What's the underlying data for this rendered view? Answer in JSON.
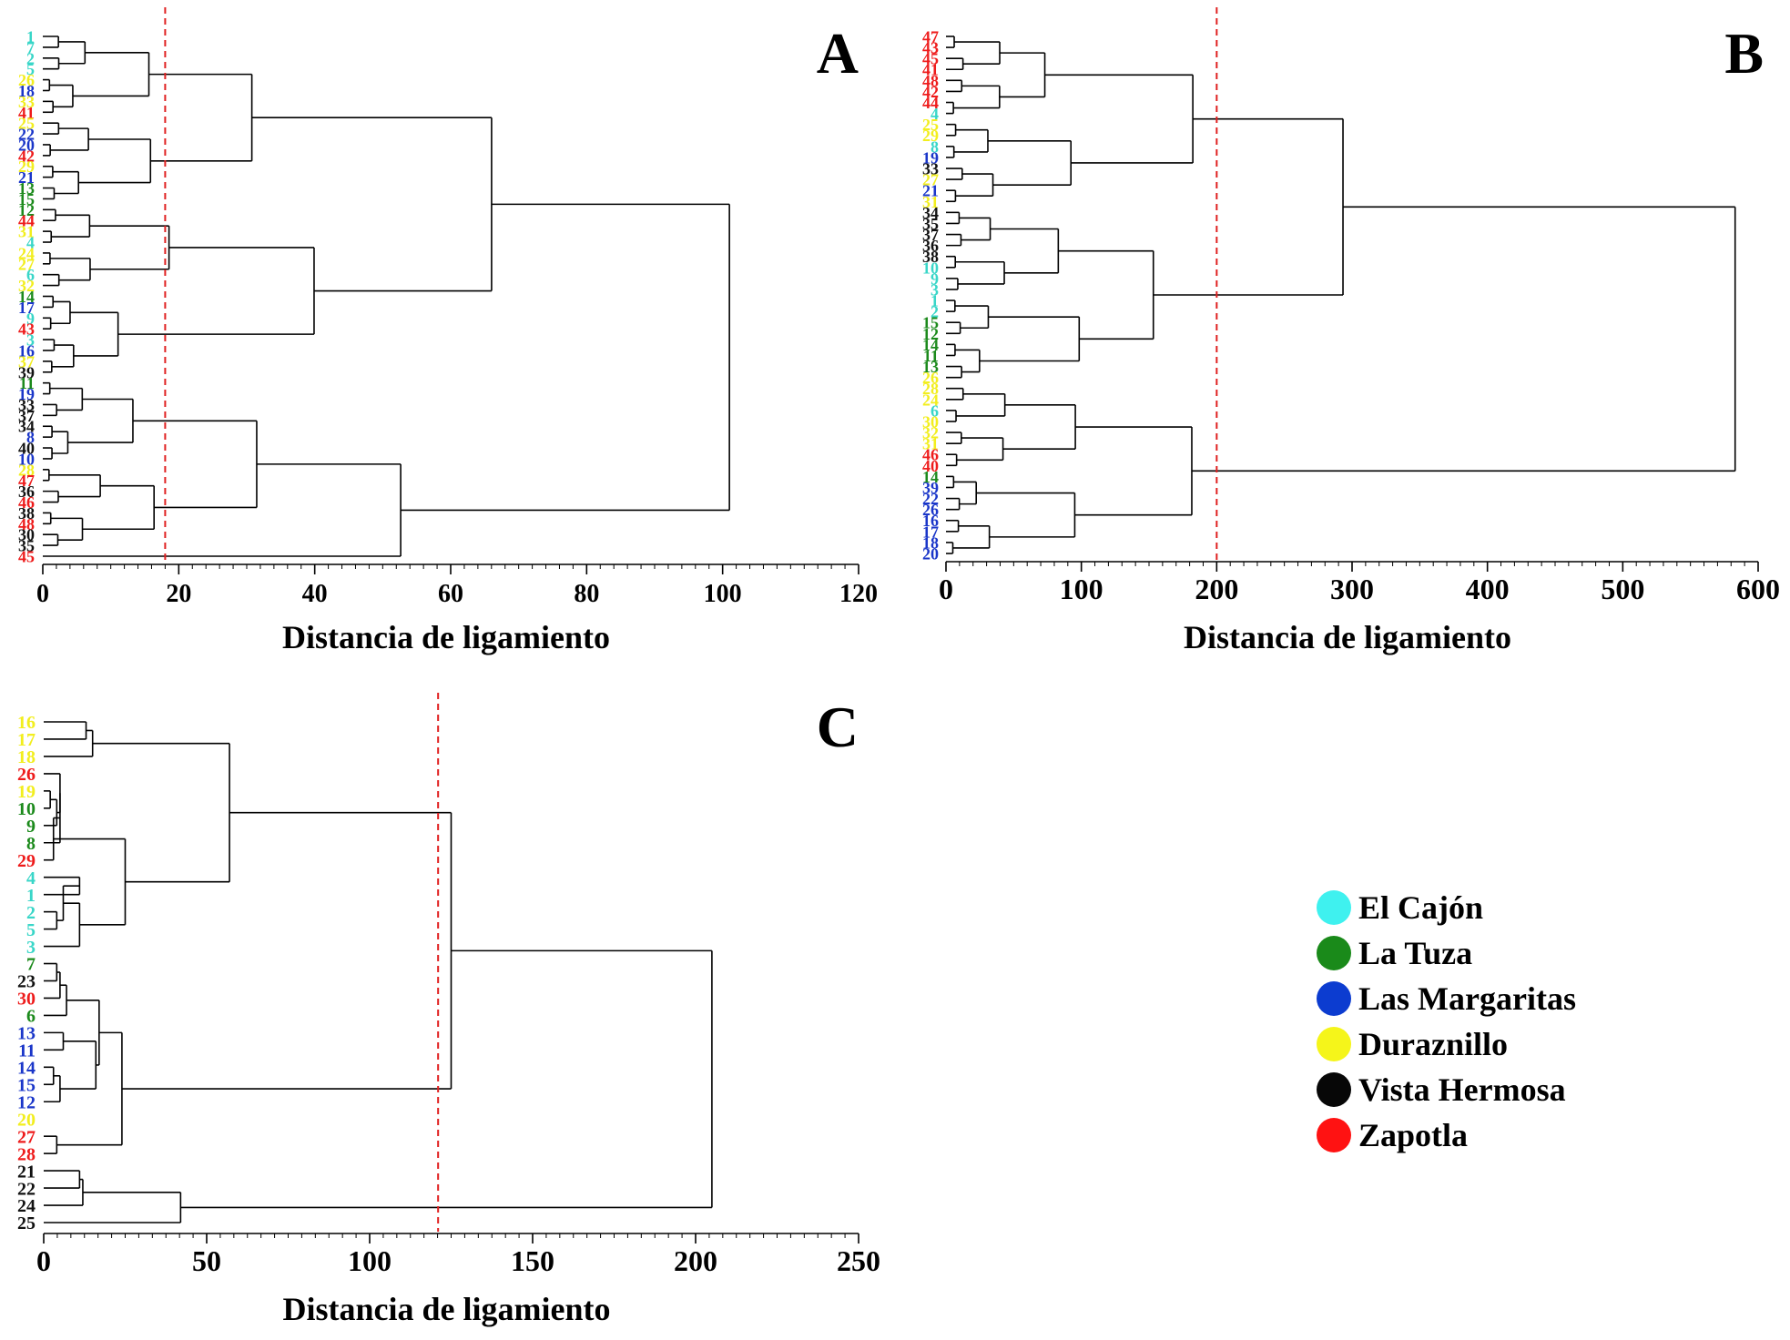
{
  "colors": {
    "el_cajon": "#39d6c8",
    "la_tuza": "#1c8a1c",
    "las_margaritas": "#1a36c9",
    "duraznillo": "#f2ee1e",
    "vista_hermosa": "#111111",
    "zapotla": "#ee1b1b",
    "cutline": "#e02020"
  },
  "legend": [
    {
      "label": "El Cajón",
      "color": "#3ff1ef"
    },
    {
      "label": "La Tuza",
      "color": "#1a8a1a"
    },
    {
      "label": "Las Margaritas",
      "color": "#0c3cd0"
    },
    {
      "label": "Duraznillo",
      "color": "#f5f51a"
    },
    {
      "label": "Vista Hermosa",
      "color": "#070707"
    },
    {
      "label": "Zapotla",
      "color": "#ff1212"
    }
  ],
  "chart_data": [
    {
      "type": "dendrogram",
      "panel": "A",
      "xlabel": "Distancia de ligamiento",
      "xlim": [
        0,
        120
      ],
      "xticks": [
        0,
        20,
        40,
        60,
        80,
        100,
        120
      ],
      "cut_line": 18,
      "leaves": [
        {
          "id": "1",
          "group": "el_cajon"
        },
        {
          "id": "7",
          "group": "el_cajon"
        },
        {
          "id": "2",
          "group": "el_cajon"
        },
        {
          "id": "5",
          "group": "el_cajon"
        },
        {
          "id": "26",
          "group": "duraznillo"
        },
        {
          "id": "18",
          "group": "las_margaritas"
        },
        {
          "id": "33",
          "group": "duraznillo"
        },
        {
          "id": "41",
          "group": "zapotla"
        },
        {
          "id": "25",
          "group": "duraznillo"
        },
        {
          "id": "22",
          "group": "las_margaritas"
        },
        {
          "id": "20",
          "group": "las_margaritas"
        },
        {
          "id": "42",
          "group": "zapotla"
        },
        {
          "id": "29",
          "group": "duraznillo"
        },
        {
          "id": "21",
          "group": "las_margaritas"
        },
        {
          "id": "13",
          "group": "la_tuza"
        },
        {
          "id": "15",
          "group": "la_tuza"
        },
        {
          "id": "12",
          "group": "la_tuza"
        },
        {
          "id": "44",
          "group": "zapotla"
        },
        {
          "id": "31",
          "group": "duraznillo"
        },
        {
          "id": "4",
          "group": "el_cajon"
        },
        {
          "id": "24",
          "group": "duraznillo"
        },
        {
          "id": "27",
          "group": "duraznillo"
        },
        {
          "id": "6",
          "group": "el_cajon"
        },
        {
          "id": "32",
          "group": "duraznillo"
        },
        {
          "id": "14",
          "group": "la_tuza"
        },
        {
          "id": "17",
          "group": "las_margaritas"
        },
        {
          "id": "9",
          "group": "el_cajon"
        },
        {
          "id": "43",
          "group": "zapotla"
        },
        {
          "id": "3",
          "group": "el_cajon"
        },
        {
          "id": "16",
          "group": "las_margaritas"
        },
        {
          "id": "37",
          "group": "duraznillo"
        },
        {
          "id": "39",
          "group": "vista_hermosa"
        },
        {
          "id": "11",
          "group": "la_tuza"
        },
        {
          "id": "19",
          "group": "las_margaritas"
        },
        {
          "id": "33",
          "group": "vista_hermosa"
        },
        {
          "id": "37",
          "group": "vista_hermosa"
        },
        {
          "id": "34",
          "group": "vista_hermosa"
        },
        {
          "id": "8",
          "group": "las_margaritas"
        },
        {
          "id": "40",
          "group": "vista_hermosa"
        },
        {
          "id": "10",
          "group": "las_margaritas"
        },
        {
          "id": "28",
          "group": "duraznillo"
        },
        {
          "id": "47",
          "group": "zapotla"
        },
        {
          "id": "36",
          "group": "vista_hermosa"
        },
        {
          "id": "46",
          "group": "zapotla"
        },
        {
          "id": "38",
          "group": "vista_hermosa"
        },
        {
          "id": "48",
          "group": "zapotla"
        },
        {
          "id": "30",
          "group": "vista_hermosa"
        },
        {
          "id": "35",
          "group": "vista_hermosa"
        },
        {
          "id": "45",
          "group": "zapotla"
        }
      ]
    },
    {
      "type": "dendrogram",
      "panel": "B",
      "xlabel": "Distancia de ligamiento",
      "xlim": [
        0,
        600
      ],
      "xticks": [
        0,
        100,
        200,
        300,
        400,
        500,
        600
      ],
      "cut_line": 200,
      "leaves": [
        {
          "id": "47",
          "group": "zapotla"
        },
        {
          "id": "43",
          "group": "zapotla"
        },
        {
          "id": "45",
          "group": "zapotla"
        },
        {
          "id": "41",
          "group": "zapotla"
        },
        {
          "id": "48",
          "group": "zapotla"
        },
        {
          "id": "42",
          "group": "zapotla"
        },
        {
          "id": "44",
          "group": "zapotla"
        },
        {
          "id": "4",
          "group": "el_cajon"
        },
        {
          "id": "25",
          "group": "duraznillo"
        },
        {
          "id": "29",
          "group": "duraznillo"
        },
        {
          "id": "8",
          "group": "el_cajon"
        },
        {
          "id": "19",
          "group": "las_margaritas"
        },
        {
          "id": "33",
          "group": "vista_hermosa"
        },
        {
          "id": "27",
          "group": "duraznillo"
        },
        {
          "id": "21",
          "group": "las_margaritas"
        },
        {
          "id": "31",
          "group": "duraznillo"
        },
        {
          "id": "34",
          "group": "vista_hermosa"
        },
        {
          "id": "35",
          "group": "vista_hermosa"
        },
        {
          "id": "37",
          "group": "vista_hermosa"
        },
        {
          "id": "36",
          "group": "vista_hermosa"
        },
        {
          "id": "38",
          "group": "vista_hermosa"
        },
        {
          "id": "10",
          "group": "el_cajon"
        },
        {
          "id": "9",
          "group": "el_cajon"
        },
        {
          "id": "3",
          "group": "el_cajon"
        },
        {
          "id": "1",
          "group": "el_cajon"
        },
        {
          "id": "2",
          "group": "el_cajon"
        },
        {
          "id": "15",
          "group": "la_tuza"
        },
        {
          "id": "12",
          "group": "la_tuza"
        },
        {
          "id": "14",
          "group": "la_tuza"
        },
        {
          "id": "11",
          "group": "la_tuza"
        },
        {
          "id": "13",
          "group": "la_tuza"
        },
        {
          "id": "26",
          "group": "duraznillo"
        },
        {
          "id": "28",
          "group": "duraznillo"
        },
        {
          "id": "24",
          "group": "duraznillo"
        },
        {
          "id": "6",
          "group": "el_cajon"
        },
        {
          "id": "30",
          "group": "duraznillo"
        },
        {
          "id": "32",
          "group": "duraznillo"
        },
        {
          "id": "31",
          "group": "duraznillo"
        },
        {
          "id": "46",
          "group": "zapotla"
        },
        {
          "id": "40",
          "group": "zapotla"
        },
        {
          "id": "14",
          "group": "la_tuza"
        },
        {
          "id": "39",
          "group": "las_margaritas"
        },
        {
          "id": "22",
          "group": "las_margaritas"
        },
        {
          "id": "26",
          "group": "las_margaritas"
        },
        {
          "id": "16",
          "group": "las_margaritas"
        },
        {
          "id": "17",
          "group": "las_margaritas"
        },
        {
          "id": "18",
          "group": "las_margaritas"
        },
        {
          "id": "20",
          "group": "las_margaritas"
        }
      ]
    },
    {
      "type": "dendrogram",
      "panel": "C",
      "xlabel": "Distancia de ligamiento",
      "xlim": [
        0,
        250
      ],
      "xticks": [
        0,
        50,
        100,
        150,
        200,
        250
      ],
      "cut_line": 121,
      "leaves": [
        {
          "id": "16",
          "group": "duraznillo"
        },
        {
          "id": "17",
          "group": "duraznillo"
        },
        {
          "id": "18",
          "group": "duraznillo"
        },
        {
          "id": "26",
          "group": "zapotla"
        },
        {
          "id": "19",
          "group": "duraznillo"
        },
        {
          "id": "10",
          "group": "la_tuza"
        },
        {
          "id": "9",
          "group": "la_tuza"
        },
        {
          "id": "8",
          "group": "la_tuza"
        },
        {
          "id": "29",
          "group": "zapotla"
        },
        {
          "id": "4",
          "group": "el_cajon"
        },
        {
          "id": "1",
          "group": "el_cajon"
        },
        {
          "id": "2",
          "group": "el_cajon"
        },
        {
          "id": "5",
          "group": "el_cajon"
        },
        {
          "id": "3",
          "group": "el_cajon"
        },
        {
          "id": "7",
          "group": "la_tuza"
        },
        {
          "id": "23",
          "group": "vista_hermosa"
        },
        {
          "id": "30",
          "group": "zapotla"
        },
        {
          "id": "6",
          "group": "la_tuza"
        },
        {
          "id": "13",
          "group": "las_margaritas"
        },
        {
          "id": "11",
          "group": "las_margaritas"
        },
        {
          "id": "14",
          "group": "las_margaritas"
        },
        {
          "id": "15",
          "group": "las_margaritas"
        },
        {
          "id": "12",
          "group": "las_margaritas"
        },
        {
          "id": "20",
          "group": "duraznillo"
        },
        {
          "id": "27",
          "group": "zapotla"
        },
        {
          "id": "28",
          "group": "zapotla"
        },
        {
          "id": "21",
          "group": "vista_hermosa"
        },
        {
          "id": "22",
          "group": "vista_hermosa"
        },
        {
          "id": "24",
          "group": "vista_hermosa"
        },
        {
          "id": "25",
          "group": "vista_hermosa"
        }
      ],
      "merges": [
        [
          0,
          1,
          1,
          13
        ],
        [
          -1,
          2,
          2,
          15
        ],
        [
          4,
          5,
          3,
          2
        ],
        [
          -3,
          6,
          4,
          4
        ],
        [
          3,
          -4,
          5,
          5
        ],
        [
          -5,
          7,
          6,
          5
        ],
        [
          -6,
          8,
          7,
          3
        ],
        [
          9,
          10,
          8,
          11
        ],
        [
          11,
          12,
          9,
          4
        ],
        [
          -9,
          -8,
          10,
          6
        ],
        [
          -10,
          13,
          11,
          11
        ],
        [
          -7,
          -11,
          12,
          25
        ],
        [
          -2,
          -12,
          13,
          57
        ],
        [
          14,
          15,
          14,
          4
        ],
        [
          -14,
          16,
          15,
          5
        ],
        [
          -15,
          17,
          16,
          7
        ],
        [
          18,
          19,
          17,
          6
        ],
        [
          20,
          21,
          18,
          3
        ],
        [
          -18,
          22,
          19,
          5
        ],
        [
          -17,
          -19,
          20,
          16
        ],
        [
          -16,
          -20,
          21,
          17
        ],
        [
          24,
          25,
          22,
          4
        ],
        [
          -21,
          -22,
          23,
          24
        ],
        [
          26,
          27,
          24,
          11
        ],
        [
          -24,
          28,
          25,
          12
        ],
        [
          -25,
          29,
          26,
          42
        ],
        [
          -13,
          -23,
          27,
          125
        ],
        [
          -27,
          -26,
          28,
          205
        ]
      ]
    }
  ],
  "panels": {
    "A": {
      "label": "A"
    },
    "B": {
      "label": "B"
    },
    "C": {
      "label": "C"
    }
  }
}
